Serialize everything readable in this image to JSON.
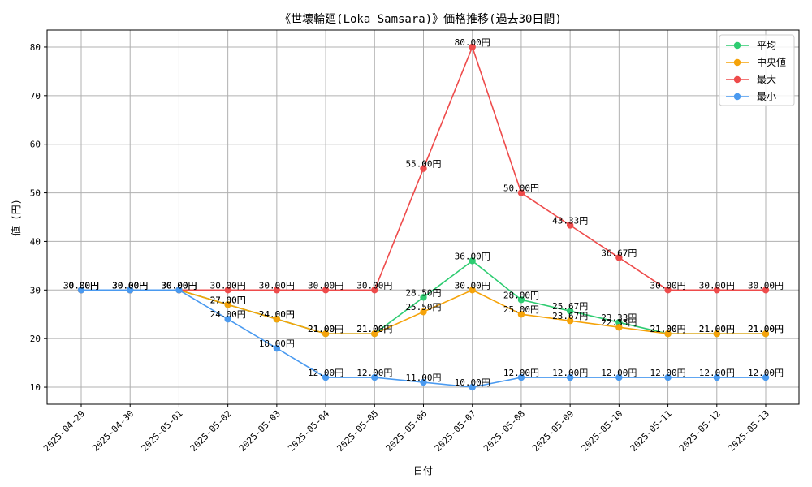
{
  "chart_data": {
    "type": "line",
    "title": "《世壊輪廻(Loka Samsara)》価格推移(過去30日間)",
    "xlabel": "日付",
    "ylabel": "値 (円)",
    "ylim": [
      6.5,
      83.5
    ],
    "yticks": [
      10,
      20,
      30,
      40,
      50,
      60,
      70,
      80
    ],
    "grid": true,
    "legend_position": "top-right",
    "value_suffix": "円",
    "categories": [
      "2025-04-29",
      "2025-04-30",
      "2025-05-01",
      "2025-05-02",
      "2025-05-03",
      "2025-05-04",
      "2025-05-05",
      "2025-05-06",
      "2025-05-07",
      "2025-05-08",
      "2025-05-09",
      "2025-05-10",
      "2025-05-11",
      "2025-05-12",
      "2025-05-13"
    ],
    "series": [
      {
        "name": "平均",
        "color": "#2ecc71",
        "values": [
          30,
          30,
          30,
          27,
          24,
          21,
          21,
          28.5,
          36,
          28,
          25.67,
          23.33,
          21,
          21,
          21
        ]
      },
      {
        "name": "中央値",
        "color": "#f5a30a",
        "values": [
          30,
          30,
          30,
          27,
          24,
          21,
          21,
          25.5,
          30,
          25,
          23.67,
          22.33,
          21,
          21,
          21
        ]
      },
      {
        "name": "最大",
        "color": "#ee4b4b",
        "values": [
          30,
          30,
          30,
          30,
          30,
          30,
          30,
          55,
          80,
          50,
          43.33,
          36.67,
          30,
          30,
          30
        ]
      },
      {
        "name": "最小",
        "color": "#4a9af0",
        "values": [
          30,
          30,
          30,
          24,
          18,
          12,
          12,
          11,
          10,
          12,
          12,
          12,
          12,
          12,
          12
        ]
      }
    ]
  }
}
